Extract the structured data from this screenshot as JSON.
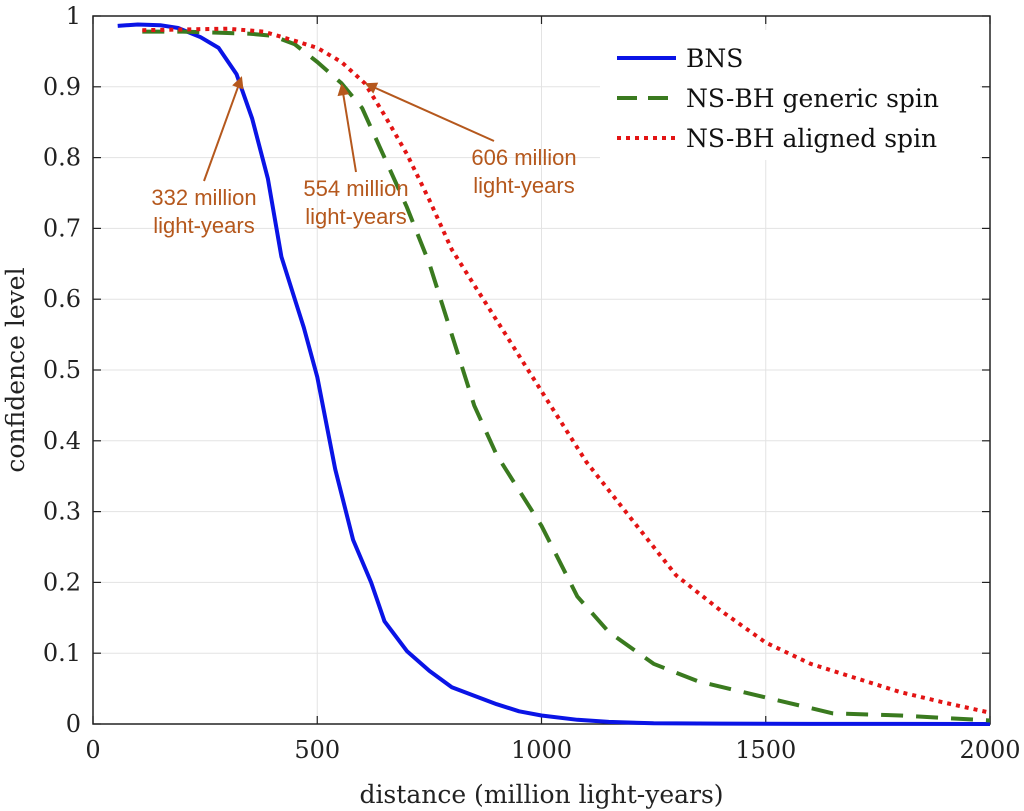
{
  "chart_data": {
    "type": "line",
    "title": "",
    "xlabel": "distance (million light-years)",
    "ylabel": "confidence level",
    "xlim": [
      0,
      2000
    ],
    "ylim": [
      0,
      1
    ],
    "xticks": [
      0,
      500,
      1000,
      1500,
      2000
    ],
    "xtick_labels": [
      "0",
      "500",
      "1000",
      "1500",
      "2000"
    ],
    "yticks": [
      0,
      0.1,
      0.2,
      0.3,
      0.4,
      0.5,
      0.6,
      0.7,
      0.8,
      0.9,
      1
    ],
    "ytick_labels": [
      "0",
      "0.1",
      "0.2",
      "0.3",
      "0.4",
      "0.5",
      "0.6",
      "0.7",
      "0.8",
      "0.9",
      "1"
    ],
    "grid": true,
    "legend_position": "top-right",
    "series": [
      {
        "name": "BNS",
        "color": "#0a14e6",
        "style": "solid",
        "x": [
          55,
          100,
          150,
          190,
          240,
          280,
          320,
          355,
          390,
          420,
          450,
          470,
          500,
          540,
          580,
          620,
          650,
          700,
          750,
          800,
          850,
          900,
          950,
          1000,
          1080,
          1150,
          1250,
          1400,
          1600,
          1800,
          2000
        ],
        "y": [
          0.986,
          0.988,
          0.987,
          0.983,
          0.97,
          0.955,
          0.918,
          0.855,
          0.77,
          0.66,
          0.6,
          0.56,
          0.49,
          0.36,
          0.26,
          0.2,
          0.145,
          0.103,
          0.075,
          0.052,
          0.04,
          0.028,
          0.018,
          0.012,
          0.006,
          0.003,
          0.001,
          0.0005,
          0.0002,
          0.0001,
          0.0
        ]
      },
      {
        "name": "NS-BH generic spin",
        "color": "#3a7a1f",
        "style": "dashed",
        "x": [
          110,
          200,
          300,
          350,
          400,
          450,
          500,
          554,
          600,
          650,
          700,
          750,
          800,
          850,
          900,
          950,
          1000,
          1080,
          1150,
          1250,
          1350,
          1450,
          1550,
          1650,
          1800,
          2000
        ],
        "y": [
          0.978,
          0.978,
          0.976,
          0.975,
          0.972,
          0.96,
          0.935,
          0.905,
          0.87,
          0.8,
          0.73,
          0.65,
          0.55,
          0.45,
          0.38,
          0.33,
          0.28,
          0.18,
          0.13,
          0.085,
          0.06,
          0.045,
          0.03,
          0.015,
          0.012,
          0.005
        ]
      },
      {
        "name": "NS-BH aligned spin",
        "color": "#e31414",
        "style": "dotted",
        "x": [
          110,
          200,
          300,
          380,
          450,
          500,
          554,
          606,
          650,
          700,
          750,
          800,
          850,
          900,
          950,
          1000,
          1100,
          1200,
          1300,
          1400,
          1500,
          1600,
          1700,
          1800,
          1900,
          2000
        ],
        "y": [
          0.98,
          0.981,
          0.982,
          0.978,
          0.965,
          0.955,
          0.935,
          0.905,
          0.86,
          0.805,
          0.74,
          0.67,
          0.62,
          0.57,
          0.52,
          0.47,
          0.37,
          0.29,
          0.21,
          0.16,
          0.115,
          0.085,
          0.065,
          0.045,
          0.03,
          0.016
        ]
      }
    ],
    "annotations": [
      {
        "lines": [
          "332 million",
          "light-years"
        ],
        "x": 332,
        "y": 0.915,
        "color": "#b5581d"
      },
      {
        "lines": [
          "554 million",
          "light-years"
        ],
        "x": 554,
        "y": 0.905,
        "color": "#b5581d"
      },
      {
        "lines": [
          "606 million",
          "light-years"
        ],
        "x": 606,
        "y": 0.905,
        "color": "#b5581d"
      }
    ]
  }
}
